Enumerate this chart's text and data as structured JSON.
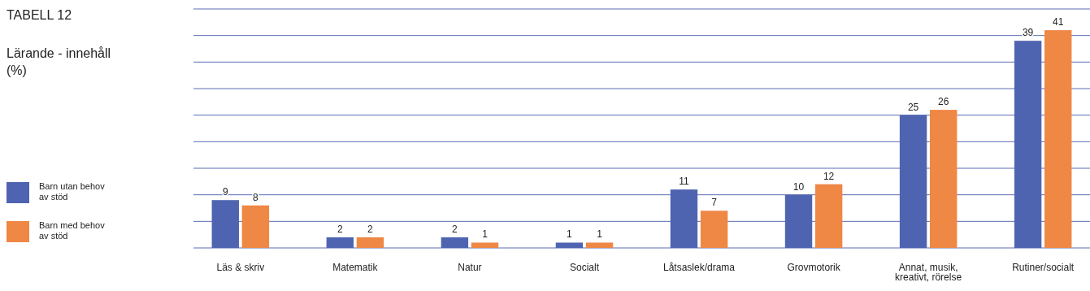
{
  "chart_data": {
    "type": "bar",
    "title": "TABELL 12",
    "subtitle": "Lärande - innehåll (%)",
    "categories": [
      "Läs & skriv",
      "Matematik",
      "Natur",
      "Socialt",
      "Låtsaslek/drama",
      "Grovmotorik",
      "Annat, musik, kreativt, rörelse",
      "Rutiner/socialt"
    ],
    "series": [
      {
        "name": "Barn utan behov av stöd",
        "color": "#4f64b1",
        "values": [
          9,
          2,
          2,
          1,
          11,
          10,
          25,
          39
        ]
      },
      {
        "name": "Barn med behov av stöd",
        "color": "#ef8745",
        "values": [
          8,
          2,
          1,
          1,
          7,
          12,
          26,
          41
        ]
      }
    ],
    "ylim": [
      0,
      45
    ],
    "yticks": [
      {
        "value": 0,
        "label": null
      },
      {
        "value": 5,
        "label": null
      },
      {
        "value": 10,
        "label": null
      },
      {
        "value": 15,
        "label": null
      },
      {
        "value": 20,
        "label": null
      },
      {
        "value": 25,
        "label": null
      },
      {
        "value": 30,
        "label": null
      },
      {
        "value": 35,
        "label": null
      },
      {
        "value": 40,
        "label": null
      },
      {
        "value": 45,
        "label": null
      }
    ],
    "tick_labels": "x",
    "grid": "y",
    "legend": "left",
    "data_labels": true
  }
}
